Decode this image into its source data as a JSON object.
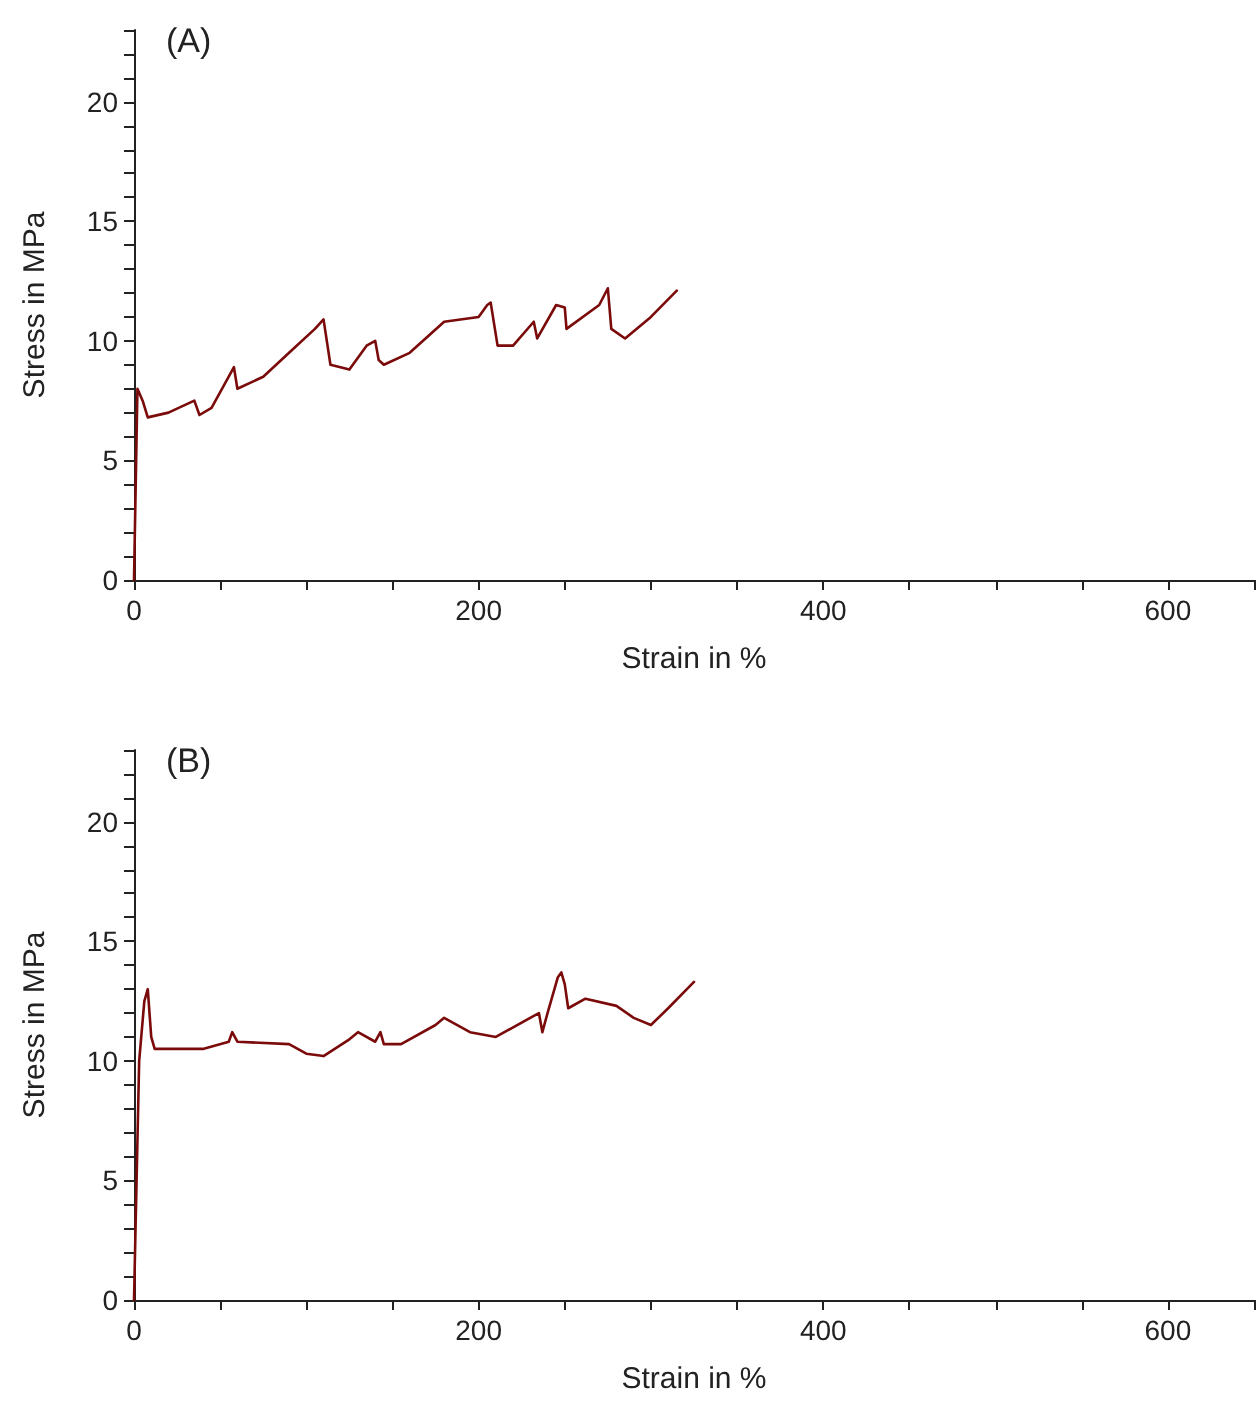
{
  "chart_data": [
    {
      "type": "line",
      "title": "(A)",
      "xlabel": "Strain in %",
      "ylabel": "Stress in MPa",
      "marker": "none",
      "line_style": "solid",
      "xlim": [
        0,
        650
      ],
      "ylim": [
        0,
        23
      ],
      "xticks": [
        0,
        {
          "value": 50,
          "label": null
        },
        {
          "value": 100,
          "label": null
        },
        {
          "value": 150,
          "label": null
        },
        200,
        {
          "value": 250,
          "label": null
        },
        {
          "value": 300,
          "label": null
        },
        {
          "value": 350,
          "label": null
        },
        400,
        {
          "value": 450,
          "label": null
        },
        {
          "value": 500,
          "label": null
        },
        {
          "value": 550,
          "label": null
        },
        600,
        {
          "value": 650,
          "label": null
        }
      ],
      "yticks": [
        0,
        {
          "value": 1,
          "label": null
        },
        {
          "value": 2,
          "label": null
        },
        {
          "value": 3,
          "label": null
        },
        {
          "value": 4,
          "label": null
        },
        5,
        {
          "value": 6,
          "label": null
        },
        {
          "value": 7,
          "label": null
        },
        {
          "value": 8,
          "label": null
        },
        {
          "value": 9,
          "label": null
        },
        10,
        {
          "value": 11,
          "label": null
        },
        {
          "value": 12,
          "label": null
        },
        {
          "value": 13,
          "label": null
        },
        {
          "value": 14,
          "label": null
        },
        15,
        {
          "value": 16,
          "label": null
        },
        {
          "value": 17,
          "label": null
        },
        {
          "value": 18,
          "label": null
        },
        {
          "value": 19,
          "label": null
        },
        20,
        {
          "value": 21,
          "label": null
        },
        {
          "value": 22,
          "label": null
        },
        {
          "value": 23,
          "label": null
        }
      ],
      "series": [
        {
          "color": "#7b0a0a",
          "x": [
            0,
            2,
            5,
            8,
            20,
            35,
            38,
            45,
            58,
            60,
            75,
            90,
            105,
            110,
            114,
            125,
            135,
            140,
            142,
            145,
            160,
            180,
            200,
            205,
            207,
            211,
            220,
            232,
            234,
            245,
            250,
            251,
            270,
            275,
            277,
            285,
            300,
            315
          ],
          "values": [
            0,
            8,
            7.5,
            6.8,
            7,
            7.5,
            6.9,
            7.2,
            8.9,
            8,
            8.5,
            9.5,
            10.5,
            10.9,
            9,
            8.8,
            9.8,
            10,
            9.2,
            9,
            9.5,
            10.8,
            11,
            11.5,
            11.6,
            9.8,
            9.8,
            10.8,
            10.1,
            11.5,
            11.4,
            10.5,
            11.5,
            12.2,
            10.5,
            10.1,
            11,
            12.1
          ]
        }
      ]
    },
    {
      "type": "line",
      "title": "(B)",
      "xlabel": "Strain in %",
      "ylabel": "Stress in MPa",
      "marker": "none",
      "line_style": "solid",
      "xlim": [
        0,
        650
      ],
      "ylim": [
        0,
        23
      ],
      "xticks": [
        0,
        {
          "value": 50,
          "label": null
        },
        {
          "value": 100,
          "label": null
        },
        {
          "value": 150,
          "label": null
        },
        200,
        {
          "value": 250,
          "label": null
        },
        {
          "value": 300,
          "label": null
        },
        {
          "value": 350,
          "label": null
        },
        400,
        {
          "value": 450,
          "label": null
        },
        {
          "value": 500,
          "label": null
        },
        {
          "value": 550,
          "label": null
        },
        600,
        {
          "value": 650,
          "label": null
        }
      ],
      "yticks": [
        0,
        {
          "value": 1,
          "label": null
        },
        {
          "value": 2,
          "label": null
        },
        {
          "value": 3,
          "label": null
        },
        {
          "value": 4,
          "label": null
        },
        5,
        {
          "value": 6,
          "label": null
        },
        {
          "value": 7,
          "label": null
        },
        {
          "value": 8,
          "label": null
        },
        {
          "value": 9,
          "label": null
        },
        10,
        {
          "value": 11,
          "label": null
        },
        {
          "value": 12,
          "label": null
        },
        {
          "value": 13,
          "label": null
        },
        {
          "value": 14,
          "label": null
        },
        15,
        {
          "value": 16,
          "label": null
        },
        {
          "value": 17,
          "label": null
        },
        {
          "value": 18,
          "label": null
        },
        {
          "value": 19,
          "label": null
        },
        20,
        {
          "value": 21,
          "label": null
        },
        {
          "value": 22,
          "label": null
        },
        {
          "value": 23,
          "label": null
        }
      ],
      "series": [
        {
          "color": "#7b0a0a",
          "x": [
            0,
            3,
            6,
            8,
            10,
            12,
            20,
            40,
            55,
            57,
            60,
            90,
            100,
            110,
            125,
            130,
            140,
            143,
            145,
            155,
            175,
            180,
            195,
            210,
            235,
            237,
            240,
            246,
            248,
            250,
            252,
            262,
            280,
            290,
            300,
            310,
            325
          ],
          "values": [
            0,
            10,
            12.5,
            13,
            11,
            10.5,
            10.5,
            10.5,
            10.8,
            11.2,
            10.8,
            10.7,
            10.3,
            10.2,
            10.9,
            11.2,
            10.8,
            11.2,
            10.7,
            10.7,
            11.5,
            11.8,
            11.2,
            11,
            12,
            11.2,
            12,
            13.5,
            13.7,
            13.2,
            12.2,
            12.6,
            12.3,
            11.8,
            11.5,
            12.2,
            13.3
          ]
        }
      ]
    }
  ]
}
